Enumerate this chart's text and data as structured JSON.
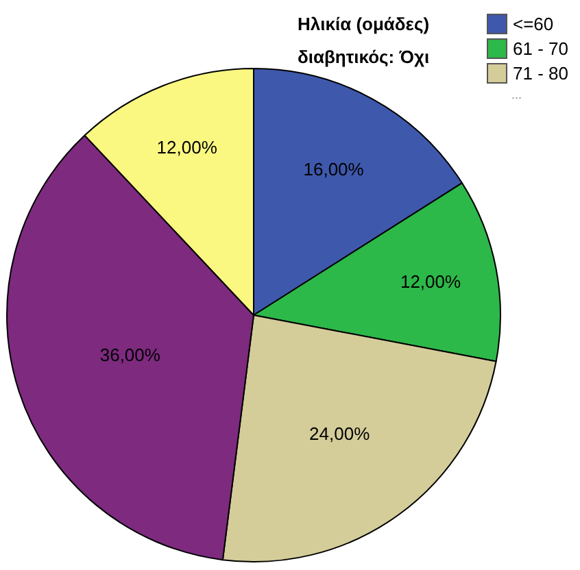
{
  "chart_data": {
    "type": "pie",
    "title": "Ηλικία (ομάδες)",
    "subtitle": "διαβητικός: Όχι",
    "categories": [
      "<=60",
      "61 - 70",
      "71 - 80",
      null,
      null
    ],
    "values": [
      16,
      12,
      24,
      36,
      12
    ],
    "value_labels": [
      "16,00%",
      "12,00%",
      "24,00%",
      "36,00%",
      "12,00%"
    ],
    "colors": [
      "#3e58ac",
      "#2db84a",
      "#d4cd9a",
      "#7d2a7f",
      "#fbf882"
    ],
    "legend": "top right",
    "annotations": [
      "..."
    ]
  }
}
